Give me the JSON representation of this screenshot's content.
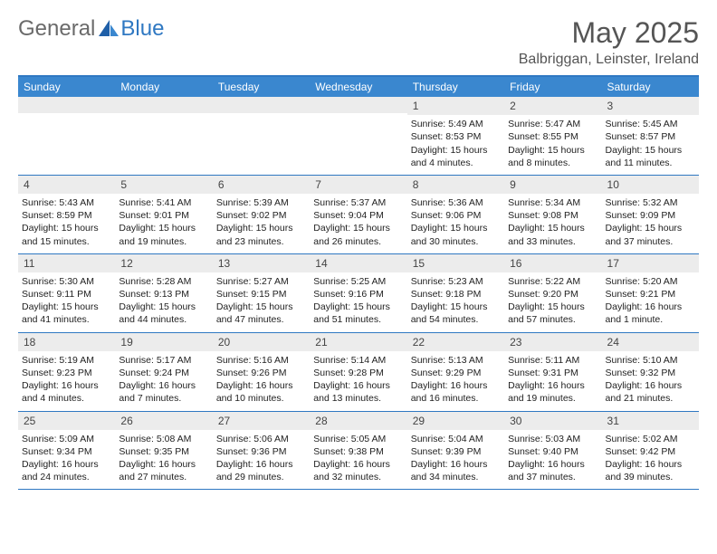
{
  "brand": {
    "part1": "General",
    "part2": "Blue"
  },
  "title": "May 2025",
  "location": "Balbriggan, Leinster, Ireland",
  "colors": {
    "header_bar": "#3a87cf",
    "rule": "#2f78c2",
    "band": "#ececec",
    "text": "#222222",
    "muted": "#555555",
    "logo_gray": "#6a6a6a"
  },
  "dow": [
    "Sunday",
    "Monday",
    "Tuesday",
    "Wednesday",
    "Thursday",
    "Friday",
    "Saturday"
  ],
  "weeks": [
    [
      null,
      null,
      null,
      null,
      {
        "n": "1",
        "sr": "5:49 AM",
        "ss": "8:53 PM",
        "dl": "15 hours and 4 minutes."
      },
      {
        "n": "2",
        "sr": "5:47 AM",
        "ss": "8:55 PM",
        "dl": "15 hours and 8 minutes."
      },
      {
        "n": "3",
        "sr": "5:45 AM",
        "ss": "8:57 PM",
        "dl": "15 hours and 11 minutes."
      }
    ],
    [
      {
        "n": "4",
        "sr": "5:43 AM",
        "ss": "8:59 PM",
        "dl": "15 hours and 15 minutes."
      },
      {
        "n": "5",
        "sr": "5:41 AM",
        "ss": "9:01 PM",
        "dl": "15 hours and 19 minutes."
      },
      {
        "n": "6",
        "sr": "5:39 AM",
        "ss": "9:02 PM",
        "dl": "15 hours and 23 minutes."
      },
      {
        "n": "7",
        "sr": "5:37 AM",
        "ss": "9:04 PM",
        "dl": "15 hours and 26 minutes."
      },
      {
        "n": "8",
        "sr": "5:36 AM",
        "ss": "9:06 PM",
        "dl": "15 hours and 30 minutes."
      },
      {
        "n": "9",
        "sr": "5:34 AM",
        "ss": "9:08 PM",
        "dl": "15 hours and 33 minutes."
      },
      {
        "n": "10",
        "sr": "5:32 AM",
        "ss": "9:09 PM",
        "dl": "15 hours and 37 minutes."
      }
    ],
    [
      {
        "n": "11",
        "sr": "5:30 AM",
        "ss": "9:11 PM",
        "dl": "15 hours and 41 minutes."
      },
      {
        "n": "12",
        "sr": "5:28 AM",
        "ss": "9:13 PM",
        "dl": "15 hours and 44 minutes."
      },
      {
        "n": "13",
        "sr": "5:27 AM",
        "ss": "9:15 PM",
        "dl": "15 hours and 47 minutes."
      },
      {
        "n": "14",
        "sr": "5:25 AM",
        "ss": "9:16 PM",
        "dl": "15 hours and 51 minutes."
      },
      {
        "n": "15",
        "sr": "5:23 AM",
        "ss": "9:18 PM",
        "dl": "15 hours and 54 minutes."
      },
      {
        "n": "16",
        "sr": "5:22 AM",
        "ss": "9:20 PM",
        "dl": "15 hours and 57 minutes."
      },
      {
        "n": "17",
        "sr": "5:20 AM",
        "ss": "9:21 PM",
        "dl": "16 hours and 1 minute."
      }
    ],
    [
      {
        "n": "18",
        "sr": "5:19 AM",
        "ss": "9:23 PM",
        "dl": "16 hours and 4 minutes."
      },
      {
        "n": "19",
        "sr": "5:17 AM",
        "ss": "9:24 PM",
        "dl": "16 hours and 7 minutes."
      },
      {
        "n": "20",
        "sr": "5:16 AM",
        "ss": "9:26 PM",
        "dl": "16 hours and 10 minutes."
      },
      {
        "n": "21",
        "sr": "5:14 AM",
        "ss": "9:28 PM",
        "dl": "16 hours and 13 minutes."
      },
      {
        "n": "22",
        "sr": "5:13 AM",
        "ss": "9:29 PM",
        "dl": "16 hours and 16 minutes."
      },
      {
        "n": "23",
        "sr": "5:11 AM",
        "ss": "9:31 PM",
        "dl": "16 hours and 19 minutes."
      },
      {
        "n": "24",
        "sr": "5:10 AM",
        "ss": "9:32 PM",
        "dl": "16 hours and 21 minutes."
      }
    ],
    [
      {
        "n": "25",
        "sr": "5:09 AM",
        "ss": "9:34 PM",
        "dl": "16 hours and 24 minutes."
      },
      {
        "n": "26",
        "sr": "5:08 AM",
        "ss": "9:35 PM",
        "dl": "16 hours and 27 minutes."
      },
      {
        "n": "27",
        "sr": "5:06 AM",
        "ss": "9:36 PM",
        "dl": "16 hours and 29 minutes."
      },
      {
        "n": "28",
        "sr": "5:05 AM",
        "ss": "9:38 PM",
        "dl": "16 hours and 32 minutes."
      },
      {
        "n": "29",
        "sr": "5:04 AM",
        "ss": "9:39 PM",
        "dl": "16 hours and 34 minutes."
      },
      {
        "n": "30",
        "sr": "5:03 AM",
        "ss": "9:40 PM",
        "dl": "16 hours and 37 minutes."
      },
      {
        "n": "31",
        "sr": "5:02 AM",
        "ss": "9:42 PM",
        "dl": "16 hours and 39 minutes."
      }
    ]
  ],
  "labels": {
    "sunrise": "Sunrise:",
    "sunset": "Sunset:",
    "daylight": "Daylight:"
  }
}
